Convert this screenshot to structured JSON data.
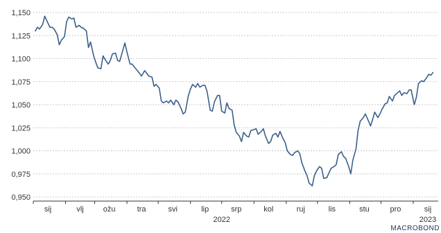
{
  "brand": "MACROBOND",
  "chart_data": {
    "type": "line",
    "title": "",
    "xlabel": "",
    "ylabel": "",
    "ylim": [
      0.95,
      1.15
    ],
    "y_ticks": [
      "0,950",
      "0,975",
      "1,000",
      "1,025",
      "1,050",
      "1,075",
      "1,100",
      "1,125",
      "1,150"
    ],
    "y_tick_values": [
      0.95,
      0.975,
      1.0,
      1.025,
      1.05,
      1.075,
      1.1,
      1.125,
      1.15
    ],
    "grid": true,
    "x_tick_labels": [
      "sij",
      "vlj",
      "ožu",
      "tra",
      "svi",
      "lip",
      "srp",
      "kol",
      "ruj",
      "lis",
      "stu",
      "pro",
      "sij"
    ],
    "x_tick_dates": [
      "2022-01-15",
      "2022-02-15",
      "2022-03-15",
      "2022-04-15",
      "2022-05-15",
      "2022-06-15",
      "2022-07-15",
      "2022-08-15",
      "2022-09-15",
      "2022-10-15",
      "2022-11-15",
      "2022-12-15",
      "2023-01-15"
    ],
    "year_labels": [
      {
        "label": "2022",
        "date": "2022-07-01"
      },
      {
        "label": "2023",
        "date": "2023-01-15"
      }
    ],
    "x_range": [
      "2022-01-01",
      "2023-01-25"
    ],
    "series": [
      {
        "color": "#3b5f8a",
        "x": [
          "2022-01-03",
          "2022-01-05",
          "2022-01-07",
          "2022-01-10",
          "2022-01-12",
          "2022-01-14",
          "2022-01-17",
          "2022-01-19",
          "2022-01-21",
          "2022-01-24",
          "2022-01-26",
          "2022-01-28",
          "2022-01-31",
          "2022-02-02",
          "2022-02-04",
          "2022-02-07",
          "2022-02-09",
          "2022-02-11",
          "2022-02-14",
          "2022-02-16",
          "2022-02-18",
          "2022-02-21",
          "2022-02-23",
          "2022-02-25",
          "2022-02-28",
          "2022-03-02",
          "2022-03-04",
          "2022-03-07",
          "2022-03-09",
          "2022-03-11",
          "2022-03-14",
          "2022-03-16",
          "2022-03-18",
          "2022-03-21",
          "2022-03-23",
          "2022-03-25",
          "2022-03-28",
          "2022-03-30",
          "2022-04-01",
          "2022-04-04",
          "2022-04-06",
          "2022-04-08",
          "2022-04-11",
          "2022-04-13",
          "2022-04-15",
          "2022-04-18",
          "2022-04-20",
          "2022-04-22",
          "2022-04-25",
          "2022-04-27",
          "2022-04-29",
          "2022-05-02",
          "2022-05-04",
          "2022-05-06",
          "2022-05-09",
          "2022-05-11",
          "2022-05-13",
          "2022-05-16",
          "2022-05-18",
          "2022-05-20",
          "2022-05-23",
          "2022-05-25",
          "2022-05-27",
          "2022-05-30",
          "2022-06-01",
          "2022-06-03",
          "2022-06-06",
          "2022-06-08",
          "2022-06-10",
          "2022-06-13",
          "2022-06-15",
          "2022-06-17",
          "2022-06-20",
          "2022-06-22",
          "2022-06-24",
          "2022-06-27",
          "2022-06-29",
          "2022-07-01",
          "2022-07-04",
          "2022-07-06",
          "2022-07-08",
          "2022-07-11",
          "2022-07-13",
          "2022-07-15",
          "2022-07-18",
          "2022-07-20",
          "2022-07-22",
          "2022-07-25",
          "2022-07-27",
          "2022-07-29",
          "2022-08-01",
          "2022-08-03",
          "2022-08-05",
          "2022-08-08",
          "2022-08-10",
          "2022-08-12",
          "2022-08-15",
          "2022-08-17",
          "2022-08-19",
          "2022-08-22",
          "2022-08-24",
          "2022-08-26",
          "2022-08-29",
          "2022-08-31",
          "2022-09-02",
          "2022-09-05",
          "2022-09-07",
          "2022-09-09",
          "2022-09-12",
          "2022-09-14",
          "2022-09-16",
          "2022-09-19",
          "2022-09-21",
          "2022-09-23",
          "2022-09-26",
          "2022-09-28",
          "2022-09-30",
          "2022-10-03",
          "2022-10-05",
          "2022-10-07",
          "2022-10-10",
          "2022-10-12",
          "2022-10-14",
          "2022-10-17",
          "2022-10-19",
          "2022-10-21",
          "2022-10-24",
          "2022-10-26",
          "2022-10-28",
          "2022-10-31",
          "2022-11-02",
          "2022-11-04",
          "2022-11-07",
          "2022-11-09",
          "2022-11-11",
          "2022-11-14",
          "2022-11-16",
          "2022-11-18",
          "2022-11-21",
          "2022-11-23",
          "2022-11-25",
          "2022-11-28",
          "2022-11-30",
          "2022-12-02",
          "2022-12-05",
          "2022-12-07",
          "2022-12-09",
          "2022-12-12",
          "2022-12-14",
          "2022-12-16",
          "2022-12-19",
          "2022-12-21",
          "2022-12-23",
          "2022-12-26",
          "2022-12-28",
          "2022-12-30",
          "2023-01-02",
          "2023-01-04",
          "2023-01-06",
          "2023-01-09",
          "2023-01-11",
          "2023-01-13",
          "2023-01-16",
          "2023-01-18",
          "2023-01-20"
        ],
        "values": [
          1.13,
          1.134,
          1.132,
          1.137,
          1.146,
          1.141,
          1.134,
          1.134,
          1.132,
          1.126,
          1.115,
          1.12,
          1.124,
          1.14,
          1.145,
          1.143,
          1.144,
          1.134,
          1.136,
          1.134,
          1.133,
          1.13,
          1.112,
          1.118,
          1.103,
          1.096,
          1.09,
          1.089,
          1.103,
          1.099,
          1.094,
          1.098,
          1.105,
          1.106,
          1.098,
          1.097,
          1.109,
          1.117,
          1.107,
          1.094,
          1.094,
          1.091,
          1.087,
          1.084,
          1.081,
          1.087,
          1.084,
          1.081,
          1.08,
          1.07,
          1.072,
          1.068,
          1.054,
          1.052,
          1.054,
          1.052,
          1.055,
          1.05,
          1.055,
          1.053,
          1.046,
          1.04,
          1.042,
          1.06,
          1.067,
          1.072,
          1.069,
          1.073,
          1.069,
          1.071,
          1.071,
          1.064,
          1.044,
          1.043,
          1.053,
          1.06,
          1.06,
          1.043,
          1.041,
          1.052,
          1.046,
          1.044,
          1.028,
          1.02,
          1.016,
          1.01,
          1.02,
          1.016,
          1.015,
          1.022,
          1.023,
          1.024,
          1.018,
          1.021,
          1.024,
          1.016,
          1.008,
          1.01,
          1.017,
          1.019,
          1.015,
          1.021,
          1.013,
          1.009,
          1.0,
          0.996,
          0.995,
          0.998,
          1.0,
          0.997,
          0.987,
          0.978,
          0.973,
          0.965,
          0.962,
          0.973,
          0.978,
          0.983,
          0.981,
          0.97,
          0.971,
          0.976,
          0.981,
          0.983,
          0.985,
          0.996,
          0.999,
          0.994,
          0.992,
          0.983,
          0.975,
          0.99,
          1.002,
          1.022,
          1.032,
          1.036,
          1.04,
          1.035,
          1.027,
          1.034,
          1.042,
          1.036,
          1.04,
          1.045,
          1.051,
          1.052,
          1.059,
          1.054,
          1.06,
          1.062,
          1.065,
          1.06,
          1.063,
          1.062,
          1.066,
          1.066,
          1.05,
          1.058,
          1.073,
          1.076,
          1.075,
          1.078,
          1.083,
          1.082,
          1.085
        ]
      }
    ]
  }
}
